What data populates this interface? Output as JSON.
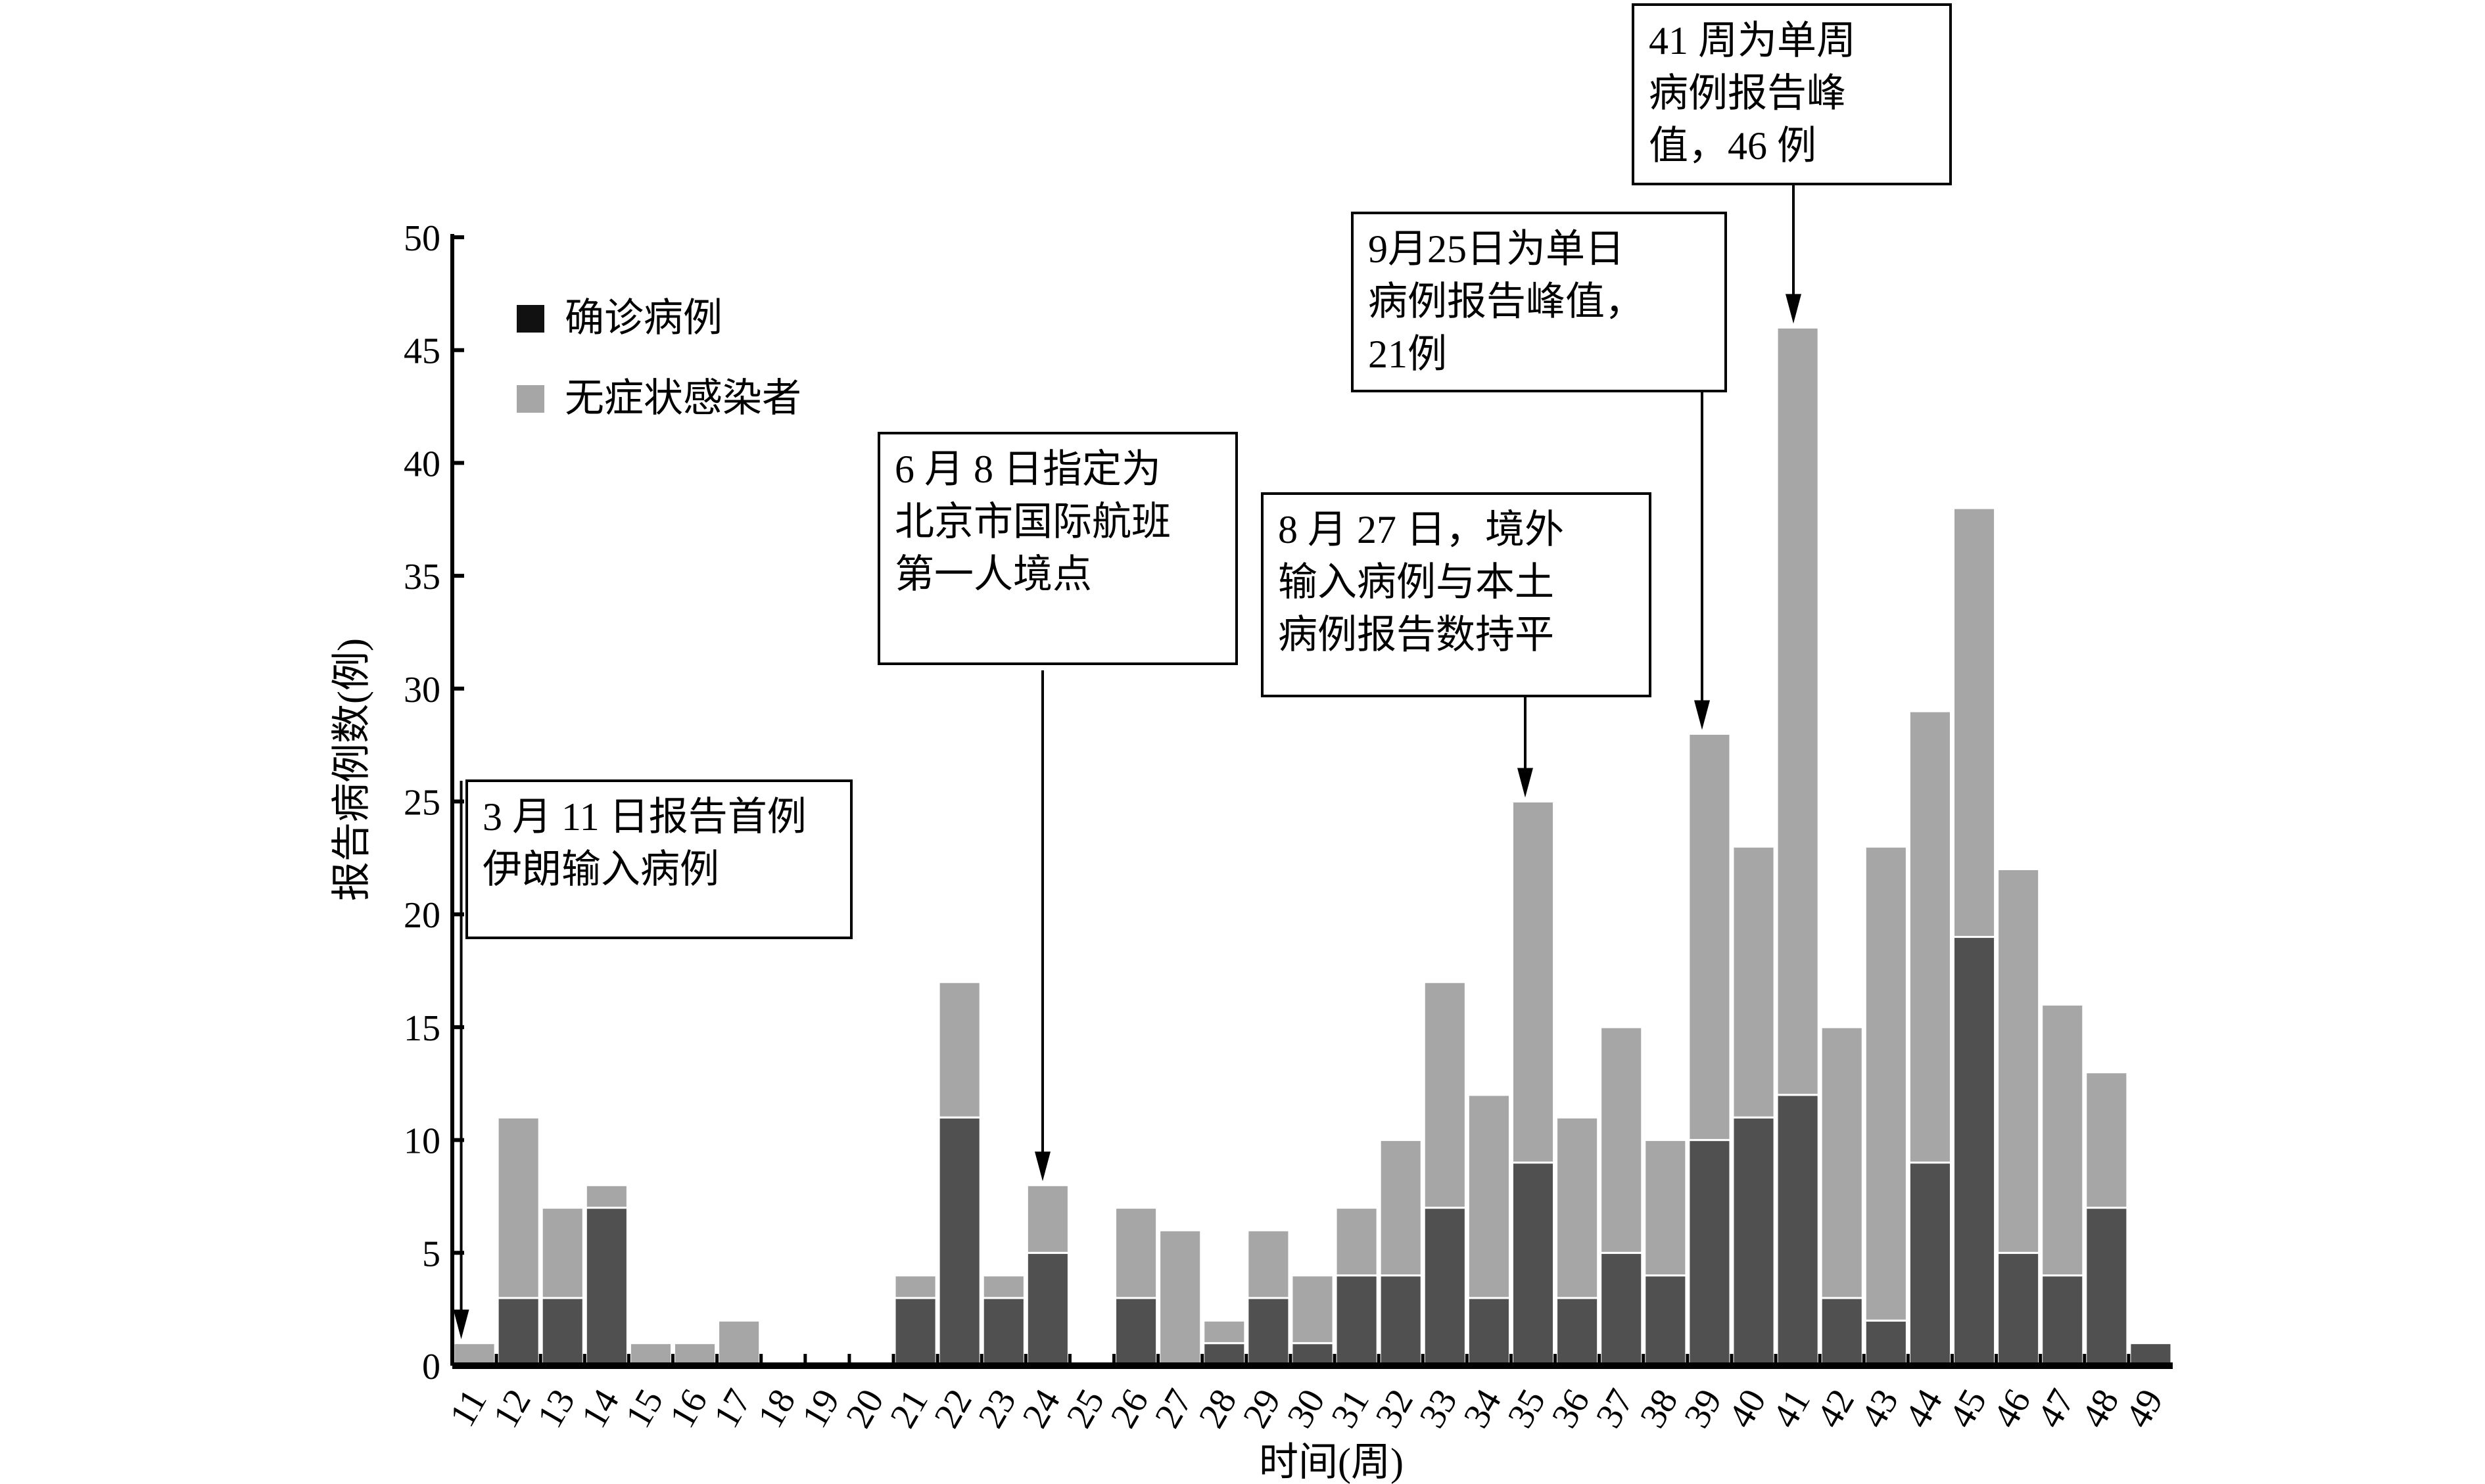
{
  "chart_data": {
    "type": "bar",
    "stacked": true,
    "xlabel": "时间(周)",
    "ylabel": "报告病例数(例)",
    "ylim": [
      0,
      50
    ],
    "yticks": [
      0,
      5,
      10,
      15,
      20,
      25,
      30,
      35,
      40,
      45,
      50
    ],
    "grid": false,
    "legend_position": "top-left",
    "categories": [
      "11",
      "12",
      "13",
      "14",
      "15",
      "16",
      "17",
      "18",
      "19",
      "20",
      "21",
      "22",
      "23",
      "24",
      "25",
      "26",
      "27",
      "28",
      "29",
      "30",
      "31",
      "32",
      "33",
      "34",
      "35",
      "36",
      "37",
      "38",
      "39",
      "40",
      "41",
      "42",
      "43",
      "44",
      "45",
      "46",
      "47",
      "48",
      "49"
    ],
    "series": [
      {
        "name": "确诊病例",
        "color": "#505050",
        "values": [
          0,
          3,
          3,
          7,
          0,
          0,
          0,
          0,
          0,
          0,
          3,
          11,
          3,
          5,
          0,
          3,
          0,
          1,
          3,
          1,
          4,
          4,
          7,
          3,
          9,
          3,
          5,
          4,
          10,
          11,
          12,
          3,
          2,
          9,
          19,
          5,
          4,
          7,
          1
        ]
      },
      {
        "name": "无症状感染者",
        "color": "#a6a6a6",
        "values": [
          1,
          8,
          4,
          1,
          1,
          1,
          2,
          0,
          0,
          0,
          1,
          6,
          1,
          3,
          0,
          4,
          6,
          1,
          3,
          3,
          3,
          6,
          10,
          9,
          16,
          8,
          10,
          6,
          18,
          12,
          34,
          12,
          21,
          20,
          19,
          17,
          12,
          6,
          0
        ]
      }
    ],
    "annotations": [
      {
        "lines": [
          "3 月 11 日报告首例",
          "伊朗输入病例"
        ],
        "target_week": "11"
      },
      {
        "lines": [
          "6 月 8 日指定为",
          "北京市国际航班",
          "第一人境点"
        ],
        "target_week": "24"
      },
      {
        "lines": [
          "8 月 27 日，境外",
          "输入病例与本土",
          "病例报告数持平"
        ],
        "target_week": "35"
      },
      {
        "lines": [
          "9月25日为单日",
          "病例报告峰值，",
          "21例"
        ],
        "target_week": "39"
      },
      {
        "lines": [
          "41 周为单周",
          "病例报告峰",
          "值，46 例"
        ],
        "target_week": "41"
      }
    ]
  }
}
